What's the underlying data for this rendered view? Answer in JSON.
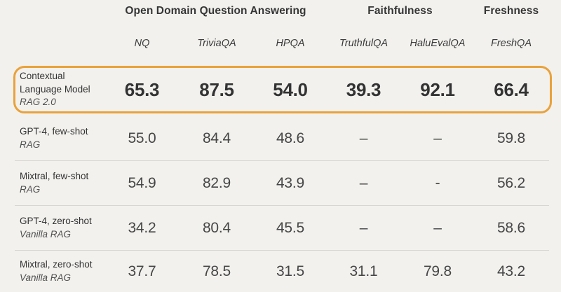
{
  "colors": {
    "background": "#F2F1EE",
    "accent_outline": "#E9A23B",
    "divider": "#D7D6D2",
    "heading_text": "#363636",
    "value_text": "#464646",
    "highlight_value_text": "#333333"
  },
  "table": {
    "groups": [
      {
        "label": "Open Domain Question Answering",
        "span": 3
      },
      {
        "label": "Faithfulness",
        "span": 2
      },
      {
        "label": "Freshness",
        "span": 1
      }
    ],
    "columns": [
      "NQ",
      "TriviaQA",
      "HPQA",
      "TruthfulQA",
      "HaluEvalQA",
      "FreshQA"
    ],
    "rows": [
      {
        "name": "Contextual Language Model",
        "subtitle": "RAG 2.0",
        "highlighted": true,
        "values": [
          "65.3",
          "87.5",
          "54.0",
          "39.3",
          "92.1",
          "66.4"
        ]
      },
      {
        "name": "GPT-4, few-shot",
        "subtitle": "RAG",
        "highlighted": false,
        "values": [
          "55.0",
          "84.4",
          "48.6",
          "–",
          "–",
          "59.8"
        ]
      },
      {
        "name": "Mixtral, few-shot",
        "subtitle": "RAG",
        "highlighted": false,
        "values": [
          "54.9",
          "82.9",
          "43.9",
          "–",
          "-",
          "56.2"
        ]
      },
      {
        "name": "GPT-4, zero-shot",
        "subtitle": "Vanilla RAG",
        "highlighted": false,
        "values": [
          "34.2",
          "80.4",
          "45.5",
          "–",
          "–",
          "58.6"
        ]
      },
      {
        "name": "Mixtral, zero-shot",
        "subtitle": "Vanilla RAG",
        "highlighted": false,
        "values": [
          "37.7",
          "78.5",
          "31.5",
          "31.1",
          "79.8",
          "43.2"
        ]
      }
    ]
  },
  "chart_data": {
    "type": "table",
    "title": "",
    "column_groups": [
      {
        "label": "Open Domain Question Answering",
        "columns": [
          "NQ",
          "TriviaQA",
          "HPQA"
        ]
      },
      {
        "label": "Faithfulness",
        "columns": [
          "TruthfulQA",
          "HaluEvalQA"
        ]
      },
      {
        "label": "Freshness",
        "columns": [
          "FreshQA"
        ]
      }
    ],
    "columns": [
      "NQ",
      "TriviaQA",
      "HPQA",
      "TruthfulQA",
      "HaluEvalQA",
      "FreshQA"
    ],
    "rows": [
      {
        "model": "Contextual Language Model",
        "method": "RAG 2.0",
        "highlighted": true,
        "values": [
          65.3,
          87.5,
          54.0,
          39.3,
          92.1,
          66.4
        ]
      },
      {
        "model": "GPT-4, few-shot",
        "method": "RAG",
        "highlighted": false,
        "values": [
          55.0,
          84.4,
          48.6,
          null,
          null,
          59.8
        ]
      },
      {
        "model": "Mixtral, few-shot",
        "method": "RAG",
        "highlighted": false,
        "values": [
          54.9,
          82.9,
          43.9,
          null,
          null,
          56.2
        ]
      },
      {
        "model": "GPT-4, zero-shot",
        "method": "Vanilla RAG",
        "highlighted": false,
        "values": [
          34.2,
          80.4,
          45.5,
          null,
          null,
          58.6
        ]
      },
      {
        "model": "Mixtral, zero-shot",
        "method": "Vanilla RAG",
        "highlighted": false,
        "values": [
          37.7,
          78.5,
          31.5,
          31.1,
          79.8,
          43.2
        ]
      }
    ]
  }
}
